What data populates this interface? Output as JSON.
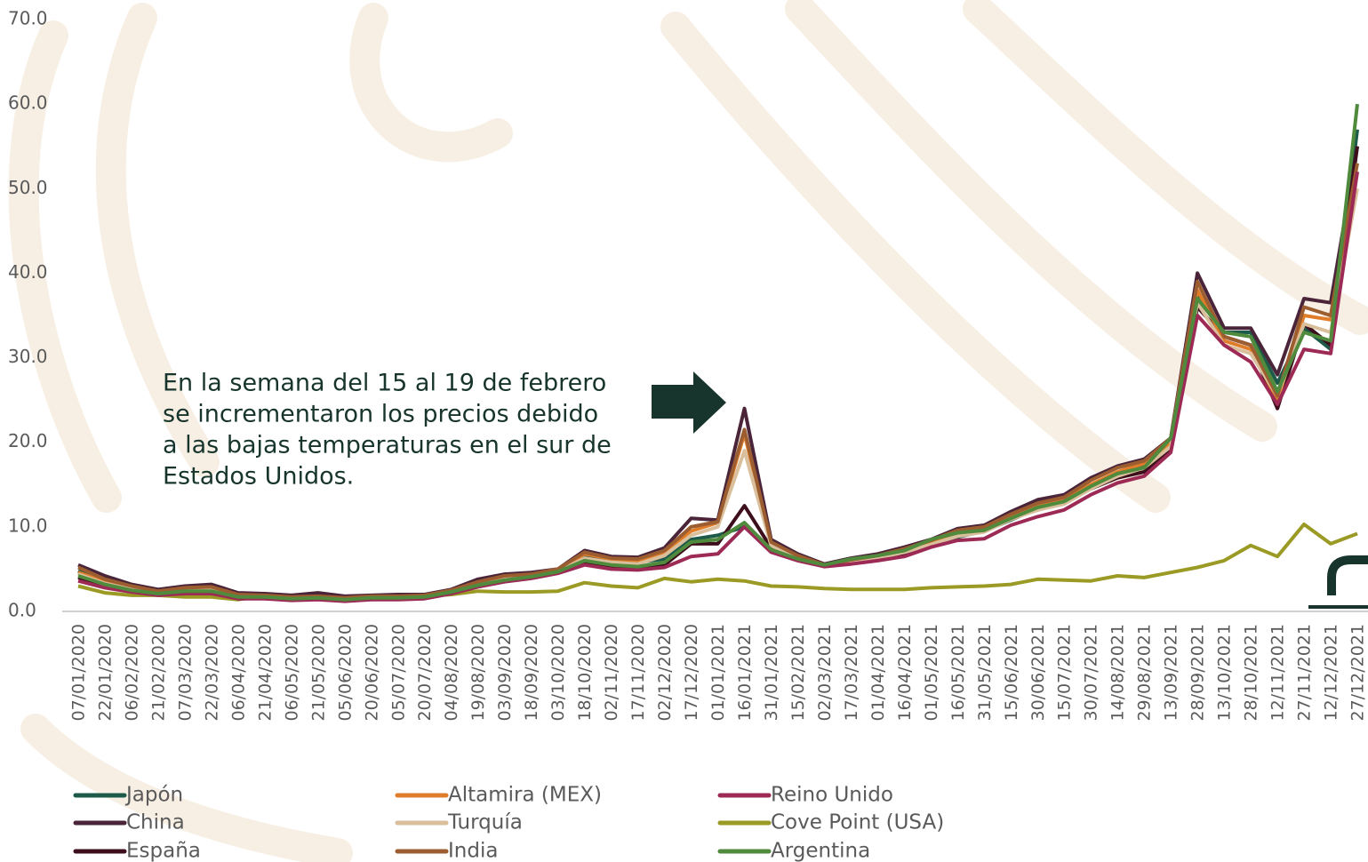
{
  "chart_data": {
    "type": "line",
    "annotation": [
      "En la semana del 15 al 19 de febrero",
      "se incrementaron los precios debido",
      "a las bajas temperaturas en el sur de",
      "Estados Unidos."
    ],
    "categories": [
      "07/01/2020",
      "22/01/2020",
      "06/02/2020",
      "21/02/2020",
      "07/03/2020",
      "22/03/2020",
      "06/04/2020",
      "21/04/2020",
      "06/05/2020",
      "21/05/2020",
      "05/06/2020",
      "20/06/2020",
      "05/07/2020",
      "20/07/2020",
      "04/08/2020",
      "19/08/2020",
      "03/09/2020",
      "18/09/2020",
      "03/10/2020",
      "18/10/2020",
      "02/11/2020",
      "17/11/2020",
      "02/12/2020",
      "17/12/2020",
      "01/01/2021",
      "16/01/2021",
      "31/01/2021",
      "15/02/2021",
      "02/03/2021",
      "17/03/2021",
      "01/04/2021",
      "16/04/2021",
      "01/05/2021",
      "16/05/2021",
      "31/05/2021",
      "15/06/2021",
      "30/06/2021",
      "15/07/2021",
      "30/07/2021",
      "14/08/2021",
      "29/08/2021",
      "13/09/2021",
      "28/09/2021",
      "13/10/2021",
      "28/10/2021",
      "12/11/2021",
      "27/11/2021",
      "12/12/2021",
      "27/12/2021"
    ],
    "series": [
      {
        "name": "Japón",
        "color": "#1e5a4a",
        "values": [
          4.8,
          3.4,
          2.6,
          2.2,
          2.5,
          2.6,
          1.8,
          1.8,
          1.6,
          1.6,
          1.5,
          1.6,
          1.7,
          1.8,
          2.4,
          3.3,
          3.8,
          4.2,
          4.8,
          6.5,
          6.0,
          5.8,
          6.2,
          8.5,
          9.0,
          10.0,
          7.5,
          6.3,
          5.6,
          6.0,
          6.5,
          7.2,
          8.0,
          8.8,
          9.5,
          10.8,
          12.2,
          13.0,
          14.8,
          16.2,
          17.2,
          20.0,
          37.5,
          33.0,
          33.0,
          27.0,
          33.5,
          31.0,
          57.0
        ]
      },
      {
        "name": "China",
        "color": "#4a2438",
        "values": [
          5.5,
          4.2,
          3.2,
          2.6,
          3.0,
          3.2,
          2.2,
          2.1,
          1.9,
          2.2,
          1.8,
          1.9,
          2.0,
          2.0,
          2.6,
          3.8,
          4.4,
          4.6,
          5.0,
          7.2,
          6.5,
          6.4,
          7.5,
          11.0,
          10.8,
          24.0,
          8.5,
          6.8,
          5.6,
          6.3,
          6.8,
          7.6,
          8.5,
          9.8,
          10.2,
          11.8,
          13.2,
          13.8,
          15.8,
          17.2,
          18.0,
          20.5,
          40.0,
          33.5,
          33.5,
          28.0,
          37.0,
          36.5,
          55.0
        ]
      },
      {
        "name": "España",
        "color": "#3d0e1c",
        "values": [
          4.0,
          3.0,
          2.4,
          2.0,
          2.2,
          2.2,
          1.5,
          1.6,
          1.4,
          1.5,
          1.3,
          1.5,
          1.5,
          1.6,
          2.2,
          3.0,
          3.6,
          4.0,
          4.6,
          5.8,
          5.2,
          5.0,
          5.5,
          8.0,
          8.0,
          12.5,
          7.5,
          6.2,
          5.5,
          5.8,
          6.2,
          6.8,
          8.0,
          9.0,
          9.5,
          11.0,
          12.0,
          12.8,
          14.5,
          15.8,
          16.5,
          19.0,
          36.0,
          32.5,
          31.5,
          24.0,
          34.0,
          31.5,
          55.0
        ]
      },
      {
        "name": "Altamira (MEX)",
        "color": "#e07d2a",
        "values": [
          4.6,
          3.5,
          2.8,
          2.3,
          2.6,
          2.7,
          1.8,
          1.8,
          1.6,
          1.7,
          1.5,
          1.7,
          1.7,
          1.8,
          2.4,
          3.4,
          4.0,
          4.3,
          4.9,
          6.8,
          6.2,
          6.0,
          7.0,
          9.5,
          10.5,
          21.0,
          8.0,
          6.5,
          5.4,
          6.0,
          6.5,
          7.2,
          8.2,
          9.2,
          9.8,
          11.2,
          12.5,
          13.2,
          15.0,
          16.5,
          17.5,
          20.0,
          38.0,
          32.0,
          31.0,
          25.0,
          35.0,
          34.5,
          52.0
        ]
      },
      {
        "name": "Turquía",
        "color": "#d9bf9b",
        "values": [
          4.4,
          3.3,
          2.6,
          2.2,
          2.4,
          2.5,
          1.7,
          1.7,
          1.5,
          1.6,
          1.4,
          1.6,
          1.6,
          1.7,
          2.3,
          3.2,
          3.8,
          4.1,
          4.7,
          6.3,
          5.8,
          5.6,
          6.6,
          9.0,
          10.0,
          19.0,
          7.8,
          6.3,
          5.3,
          5.9,
          6.3,
          7.0,
          7.9,
          8.9,
          9.4,
          10.9,
          12.0,
          12.7,
          14.5,
          16.0,
          17.0,
          19.5,
          36.5,
          31.5,
          30.5,
          25.5,
          34.0,
          33.0,
          50.0
        ]
      },
      {
        "name": "India",
        "color": "#9c5e30",
        "values": [
          5.2,
          3.8,
          3.0,
          2.4,
          2.8,
          2.9,
          2.0,
          1.9,
          1.7,
          1.8,
          1.6,
          1.8,
          1.8,
          1.9,
          2.5,
          3.5,
          4.2,
          4.4,
          5.0,
          7.0,
          6.3,
          6.2,
          7.2,
          10.0,
          10.6,
          21.5,
          8.2,
          6.6,
          5.5,
          6.1,
          6.6,
          7.4,
          8.4,
          9.6,
          10.0,
          11.5,
          12.8,
          13.5,
          15.5,
          17.0,
          17.8,
          20.5,
          39.0,
          32.5,
          31.5,
          25.5,
          36.0,
          35.0,
          53.0
        ]
      },
      {
        "name": "Reino Unido",
        "color": "#9c2a55",
        "values": [
          3.6,
          2.8,
          2.3,
          1.9,
          2.1,
          2.1,
          1.5,
          1.5,
          1.3,
          1.4,
          1.2,
          1.4,
          1.4,
          1.5,
          2.1,
          2.9,
          3.5,
          3.9,
          4.5,
          5.5,
          5.0,
          4.9,
          5.2,
          6.5,
          6.8,
          10.0,
          7.0,
          6.0,
          5.3,
          5.6,
          6.0,
          6.5,
          7.6,
          8.4,
          8.6,
          10.2,
          11.2,
          12.0,
          13.8,
          15.2,
          16.0,
          18.8,
          35.0,
          31.5,
          29.5,
          24.5,
          31.0,
          30.5,
          52.0
        ]
      },
      {
        "name": "Cove Point (USA)",
        "color": "#9a9a25",
        "values": [
          3.0,
          2.2,
          1.9,
          1.9,
          1.7,
          1.7,
          1.4,
          1.8,
          1.9,
          1.7,
          1.5,
          1.6,
          1.7,
          1.8,
          2.0,
          2.4,
          2.3,
          2.3,
          2.4,
          3.4,
          3.0,
          2.8,
          3.9,
          3.5,
          3.8,
          3.6,
          3.0,
          2.9,
          2.7,
          2.6,
          2.6,
          2.6,
          2.8,
          2.9,
          3.0,
          3.2,
          3.8,
          3.7,
          3.6,
          4.2,
          4.0,
          4.6,
          5.2,
          6.0,
          7.8,
          6.5,
          10.3,
          8.0,
          9.2
        ]
      },
      {
        "name": "Argentina",
        "color": "#4f8a3d",
        "values": [
          4.2,
          3.2,
          2.5,
          2.1,
          2.4,
          2.4,
          1.7,
          1.7,
          1.5,
          1.6,
          1.4,
          1.6,
          1.6,
          1.7,
          2.3,
          3.1,
          3.7,
          4.1,
          4.7,
          6.0,
          5.5,
          5.3,
          5.8,
          8.2,
          8.5,
          10.5,
          7.3,
          6.2,
          5.5,
          6.2,
          6.6,
          7.2,
          8.5,
          9.3,
          9.6,
          11.0,
          12.3,
          13.0,
          14.8,
          16.3,
          17.0,
          20.5,
          37.0,
          33.0,
          32.5,
          26.0,
          33.0,
          32.0,
          60.0
        ]
      }
    ],
    "ylim": [
      0,
      70
    ],
    "yticks": [
      {
        "value": 0,
        "label": "0.0"
      },
      {
        "value": 10,
        "label": "10.0"
      },
      {
        "value": 20,
        "label": "20.0"
      },
      {
        "value": 30,
        "label": "30.0"
      },
      {
        "value": 40,
        "label": "40.0"
      },
      {
        "value": 50,
        "label": "50.0"
      },
      {
        "value": 60,
        "label": "60.0"
      },
      {
        "value": 70,
        "label": "70.0"
      }
    ],
    "grid": false
  }
}
